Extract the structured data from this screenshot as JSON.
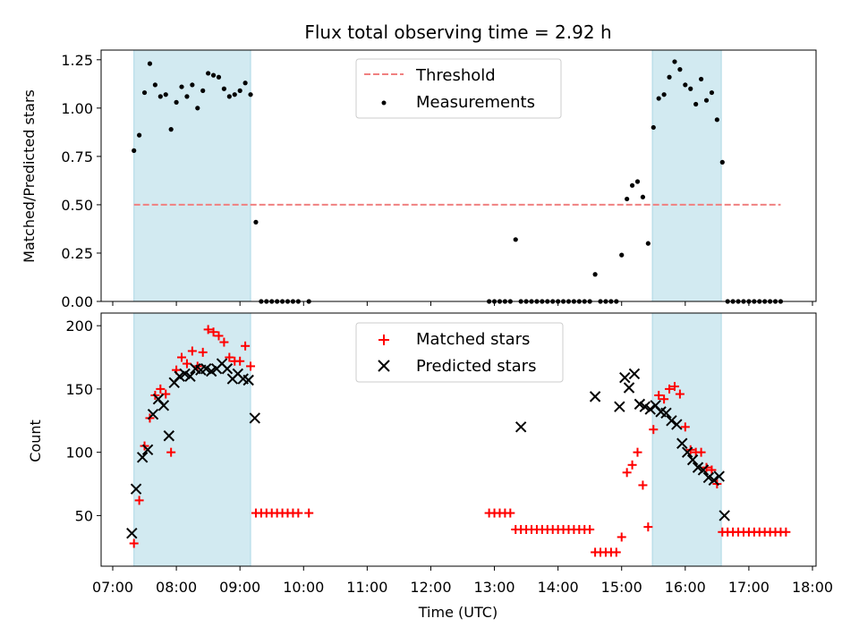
{
  "figure": {
    "title": "Flux total observing time = 2.92 h"
  },
  "colors": {
    "threshold": "#f08080",
    "measurements": "#000000",
    "matched": "#ff0000",
    "predicted": "#000000",
    "shade": "#add8e6"
  },
  "chart_data": [
    {
      "type": "scatter",
      "xlabel": "",
      "ylabel": "Matched/Predicted stars",
      "xlim": [
        "07:00",
        "18:00"
      ],
      "ylim": [
        0,
        1.3
      ],
      "yticks": [
        0,
        0.25,
        0.5,
        0.75,
        1.0,
        1.25
      ],
      "ytick_labels": [
        "0.00",
        "0.25",
        "0.50",
        "0.75",
        "1.00",
        "1.25"
      ],
      "shaded_spans": [
        [
          "07:20",
          "09:10"
        ],
        [
          "15:29",
          "16:34"
        ]
      ],
      "legend": {
        "position": "top-center",
        "entries": [
          "Threshold",
          "Measurements"
        ]
      },
      "series": [
        {
          "name": "Threshold",
          "kind": "dashed-line",
          "x": [
            "07:20",
            "17:30"
          ],
          "y": [
            0.5,
            0.5
          ]
        },
        {
          "name": "Measurements",
          "kind": "dots",
          "x": [
            "07:20",
            "07:25",
            "07:30",
            "07:35",
            "07:40",
            "07:45",
            "07:50",
            "07:55",
            "08:00",
            "08:05",
            "08:10",
            "08:15",
            "08:20",
            "08:25",
            "08:30",
            "08:35",
            "08:40",
            "08:45",
            "08:50",
            "08:55",
            "09:00",
            "09:05",
            "09:10",
            "09:15",
            "09:20",
            "09:25",
            "09:30",
            "09:35",
            "09:40",
            "09:45",
            "09:50",
            "09:55",
            "10:05",
            "12:55",
            "13:00",
            "13:05",
            "13:10",
            "13:15",
            "13:20",
            "13:25",
            "13:30",
            "13:35",
            "13:40",
            "13:45",
            "13:50",
            "13:55",
            "14:00",
            "14:05",
            "14:10",
            "14:15",
            "14:20",
            "14:25",
            "14:30",
            "14:35",
            "14:40",
            "14:45",
            "14:50",
            "14:55",
            "15:00",
            "15:05",
            "15:10",
            "15:15",
            "15:20",
            "15:25",
            "15:30",
            "15:35",
            "15:40",
            "15:45",
            "15:50",
            "15:55",
            "16:00",
            "16:05",
            "16:10",
            "16:15",
            "16:20",
            "16:25",
            "16:30",
            "16:35",
            "16:40",
            "16:45",
            "16:50",
            "16:55",
            "17:00",
            "17:05",
            "17:10",
            "17:15",
            "17:20",
            "17:25",
            "17:30"
          ],
          "y": [
            0.78,
            0.86,
            1.08,
            1.23,
            1.12,
            1.06,
            1.07,
            0.89,
            1.03,
            1.11,
            1.06,
            1.12,
            1.0,
            1.09,
            1.18,
            1.17,
            1.16,
            1.1,
            1.06,
            1.07,
            1.09,
            1.13,
            1.07,
            0.41,
            0,
            0,
            0,
            0,
            0,
            0,
            0,
            0,
            0,
            0,
            0,
            0,
            0,
            0,
            0.32,
            0,
            0,
            0,
            0,
            0,
            0,
            0,
            0,
            0,
            0,
            0,
            0,
            0,
            0,
            0.14,
            0,
            0,
            0,
            0,
            0.24,
            0.53,
            0.6,
            0.62,
            0.54,
            0.3,
            0.9,
            1.05,
            1.07,
            1.16,
            1.24,
            1.2,
            1.12,
            1.1,
            1.02,
            1.15,
            1.04,
            1.08,
            0.94,
            0.72,
            0,
            0,
            0,
            0,
            0,
            0,
            0,
            0,
            0,
            0,
            0
          ]
        }
      ]
    },
    {
      "type": "scatter",
      "xlabel": "Time (UTC)",
      "ylabel": "Count",
      "xlim": [
        "07:00",
        "18:00"
      ],
      "ylim": [
        10,
        210
      ],
      "xticks": [
        "07:00",
        "08:00",
        "09:00",
        "10:00",
        "11:00",
        "12:00",
        "13:00",
        "14:00",
        "15:00",
        "16:00",
        "17:00",
        "18:00"
      ],
      "yticks": [
        50,
        100,
        150,
        200
      ],
      "shaded_spans": [
        [
          "07:20",
          "09:10"
        ],
        [
          "15:29",
          "16:34"
        ]
      ],
      "legend": {
        "position": "top-center",
        "entries": [
          "Matched stars",
          "Predicted stars"
        ]
      },
      "series": [
        {
          "name": "Matched stars",
          "marker": "plus",
          "x": [
            "07:20",
            "07:25",
            "07:30",
            "07:35",
            "07:40",
            "07:45",
            "07:50",
            "07:55",
            "08:00",
            "08:05",
            "08:10",
            "08:15",
            "08:20",
            "08:25",
            "08:30",
            "08:35",
            "08:40",
            "08:45",
            "08:50",
            "08:55",
            "09:00",
            "09:05",
            "09:10",
            "09:15",
            "09:20",
            "09:25",
            "09:30",
            "09:35",
            "09:40",
            "09:45",
            "09:50",
            "09:55",
            "10:05",
            "12:55",
            "13:00",
            "13:05",
            "13:10",
            "13:15",
            "13:20",
            "13:25",
            "13:30",
            "13:35",
            "13:40",
            "13:45",
            "13:50",
            "13:55",
            "14:00",
            "14:05",
            "14:10",
            "14:15",
            "14:20",
            "14:25",
            "14:30",
            "14:35",
            "14:40",
            "14:45",
            "14:50",
            "14:55",
            "15:00",
            "15:05",
            "15:10",
            "15:15",
            "15:20",
            "15:25",
            "15:30",
            "15:35",
            "15:40",
            "15:45",
            "15:50",
            "15:55",
            "16:00",
            "16:05",
            "16:10",
            "16:15",
            "16:20",
            "16:25",
            "16:30",
            "16:35",
            "16:40",
            "16:45",
            "16:50",
            "16:55",
            "17:00",
            "17:05",
            "17:10",
            "17:15",
            "17:20",
            "17:25",
            "17:30",
            "17:35"
          ],
          "y": [
            28,
            62,
            105,
            127,
            145,
            150,
            146,
            100,
            165,
            175,
            170,
            180,
            168,
            179,
            197,
            195,
            192,
            187,
            175,
            172,
            172,
            184,
            168,
            52,
            52,
            52,
            52,
            52,
            52,
            52,
            52,
            52,
            52,
            52,
            52,
            52,
            52,
            52,
            39,
            39,
            39,
            39,
            39,
            39,
            39,
            39,
            39,
            39,
            39,
            39,
            39,
            39,
            39,
            21,
            21,
            21,
            21,
            21,
            33,
            84,
            90,
            100,
            74,
            41,
            118,
            145,
            142,
            150,
            152,
            146,
            120,
            102,
            100,
            100,
            88,
            86,
            75,
            37,
            37,
            37,
            37,
            37,
            37,
            37,
            37,
            37,
            37,
            37,
            37,
            37
          ]
        },
        {
          "name": "Predicted stars",
          "marker": "x",
          "x": [
            "07:18",
            "07:22",
            "07:28",
            "07:33",
            "07:38",
            "07:43",
            "07:48",
            "07:53",
            "07:58",
            "08:03",
            "08:08",
            "08:13",
            "08:18",
            "08:23",
            "08:28",
            "08:33",
            "08:38",
            "08:43",
            "08:48",
            "08:53",
            "08:58",
            "09:03",
            "09:08",
            "09:14",
            "13:25",
            "14:35",
            "14:58",
            "15:03",
            "15:07",
            "15:12",
            "15:17",
            "15:22",
            "15:27",
            "15:32",
            "15:37",
            "15:42",
            "15:47",
            "15:52",
            "15:57",
            "16:02",
            "16:07",
            "16:12",
            "16:17",
            "16:22",
            "16:27",
            "16:32",
            "16:37"
          ],
          "y": [
            36,
            71,
            96,
            102,
            130,
            142,
            137,
            113,
            155,
            160,
            162,
            160,
            166,
            165,
            166,
            164,
            166,
            170,
            166,
            158,
            162,
            158,
            157,
            127,
            120,
            144,
            136,
            159,
            151,
            162,
            138,
            136,
            134,
            137,
            132,
            131,
            125,
            122,
            107,
            100,
            94,
            88,
            86,
            80,
            78,
            81,
            50
          ]
        }
      ]
    }
  ]
}
